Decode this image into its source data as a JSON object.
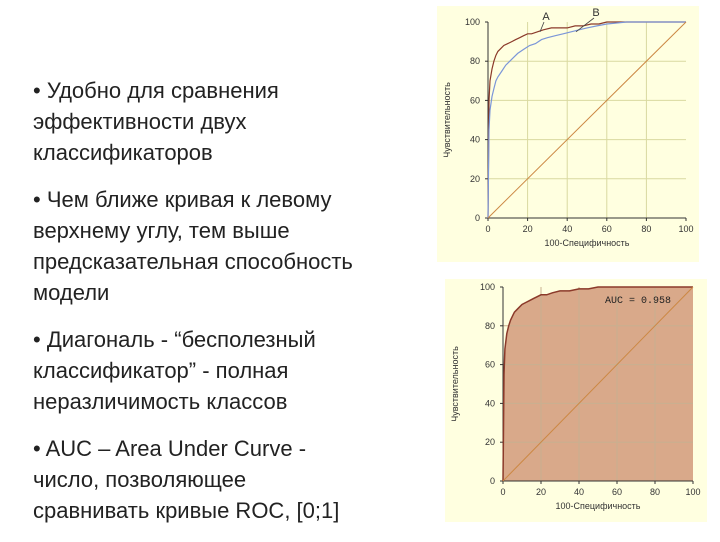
{
  "bullets": [
    "• Удобно для сравнения\nэффективности двух\nклассификаторов",
    "• Чем ближе кривая к левому\nверхнему углу, тем выше\nпредсказательная способность\nмодели",
    "• Диагональ - “бесполезный\nклассификатор” - полная\nнеразличимость классов",
    "• AUC – Area Under Curve -\nчисло, позволяющее\nсравнивать кривые ROC, [0;1]"
  ],
  "chart_data": [
    {
      "type": "line",
      "xlabel": "100-Специфичность",
      "ylabel": "Чувствительность",
      "xlim": [
        0,
        100
      ],
      "ylim": [
        0,
        100
      ],
      "xticks": [
        "0",
        "20",
        "40",
        "60",
        "80",
        "100"
      ],
      "yticks": [
        "0",
        "20",
        "40",
        "60",
        "80",
        "100"
      ],
      "grid": true,
      "colors": {
        "background": "#ffffe0",
        "grid": "#d9d9a0",
        "diagonal": "#cc8844",
        "series_A": "#8b3a2a",
        "series_B": "#7b96d8"
      },
      "series": [
        {
          "name": "A",
          "x": [
            0,
            0.5,
            1,
            2,
            3,
            4,
            5,
            6,
            8,
            10,
            12,
            14,
            16,
            18,
            20,
            22,
            25,
            28,
            32,
            36,
            40,
            44,
            48,
            52,
            56,
            60,
            70,
            80,
            90,
            100
          ],
          "y": [
            0,
            60,
            70,
            76,
            80,
            83,
            85,
            86,
            88,
            89,
            90,
            91,
            92,
            93,
            94,
            94,
            95,
            96,
            97,
            97,
            97,
            98,
            98,
            99,
            99,
            100,
            100,
            100,
            100,
            100
          ]
        },
        {
          "name": "B",
          "x": [
            0,
            0.5,
            1,
            2,
            3,
            4,
            5,
            7,
            9,
            11,
            13,
            15,
            18,
            21,
            24,
            27,
            30,
            34,
            38,
            42,
            46,
            50,
            55,
            60,
            70,
            80,
            90,
            100
          ],
          "y": [
            0,
            45,
            55,
            62,
            66,
            70,
            72,
            75,
            78,
            80,
            82,
            84,
            86,
            88,
            89,
            91,
            92,
            93,
            94,
            95,
            96,
            97,
            98,
            99,
            100,
            100,
            100,
            100
          ]
        },
        {
          "name": "",
          "x": [
            0,
            100
          ],
          "y": [
            0,
            100
          ]
        }
      ]
    },
    {
      "type": "area",
      "xlabel": "100-Специфичность",
      "ylabel": "Чувствительность",
      "xlim": [
        0,
        100
      ],
      "ylim": [
        0,
        100
      ],
      "xticks": [
        "0",
        "20",
        "40",
        "60",
        "80",
        "100"
      ],
      "yticks": [
        "0",
        "20",
        "40",
        "60",
        "80",
        "100"
      ],
      "grid": true,
      "annotation": "AUC = 0.958",
      "colors": {
        "background": "#ffffe0",
        "fill": "#d9a98a",
        "curve": "#8b3a2a",
        "diagonal": "#cc8844",
        "grid": "#c8b090"
      },
      "series": [
        {
          "name": "",
          "x": [
            0,
            0.5,
            1,
            2,
            3,
            4,
            5,
            6,
            8,
            10,
            12,
            14,
            16,
            18,
            20,
            23,
            26,
            30,
            35,
            40,
            45,
            50,
            60,
            70,
            80,
            90,
            100
          ],
          "y": [
            0,
            55,
            68,
            76,
            80,
            83,
            85,
            87,
            89,
            91,
            92,
            93,
            94,
            95,
            96,
            96,
            97,
            98,
            98,
            99,
            99,
            100,
            100,
            100,
            100,
            100,
            100
          ]
        },
        {
          "name": "",
          "x": [
            0,
            100
          ],
          "y": [
            0,
            100
          ]
        }
      ]
    }
  ]
}
